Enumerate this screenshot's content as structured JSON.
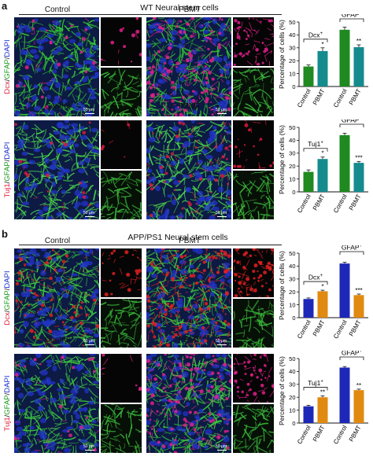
{
  "figure": {
    "panel_a_letter": "a",
    "panel_b_letter": "b",
    "panel_a_title": "WT Neural stem cells",
    "panel_b_title": "APP/PS1 Neural stem cells"
  },
  "rows": [
    {
      "control_label": "Control",
      "treated_label": "PBMT",
      "stain_marker": "Dcx",
      "stain_rest": [
        "GFAP",
        "DAPI"
      ],
      "scale_bar_left": "50 μm",
      "scale_bar_right": "50 μm",
      "bg_main": "#0c1a44",
      "fiber": "#35c535",
      "nuc": "#2233c8",
      "red_dot": "#e0208a",
      "red_density": 0.2,
      "red_density_treated": 1.0
    },
    {
      "control_label": "Control",
      "treated_label": "PBMT",
      "stain_marker": "Tuj1",
      "stain_rest": [
        "GFAP",
        "DAPI"
      ],
      "scale_bar_left": "50 μm",
      "scale_bar_right": "50 μm",
      "bg_main": "#0c1a44",
      "fiber": "#4ad24a",
      "nuc": "#2233c8",
      "red_dot": "#d81b3c",
      "red_density": 0.1,
      "red_density_treated": 0.35
    },
    {
      "control_label": "Control",
      "treated_label": "PBMT",
      "stain_marker": "Dcx",
      "stain_rest": [
        "GFAP",
        "DAPI"
      ],
      "scale_bar_left": "50 μm",
      "scale_bar_right": "50 μm",
      "bg_main": "#0c1a44",
      "fiber": "#3ec83e",
      "nuc": "#2233c8",
      "red_dot": "#e02020",
      "red_density": 0.5,
      "red_density_treated": 1.2
    },
    {
      "control_label": "Control",
      "treated_label": "PBMT",
      "stain_marker": "Tuj1",
      "stain_rest": [
        "GFAP",
        "DAPI"
      ],
      "scale_bar_left": "50 μm",
      "scale_bar_right": "50 μm",
      "bg_main": "#0c1a44",
      "fiber": "#3ec83e",
      "nuc": "#2233c8",
      "red_dot": "#e0208a",
      "red_density": 0.15,
      "red_density_treated": 0.9
    }
  ],
  "chart_data": [
    {
      "type": "bar",
      "ylabel": "Percentage of cells (%)",
      "ylim": [
        0,
        50
      ],
      "yticks": [
        0,
        10,
        20,
        30,
        40,
        50
      ],
      "categories": [
        "Control",
        "PBMT",
        "Control",
        "PBMT"
      ],
      "values": [
        15.5,
        27.5,
        44,
        30.5
      ],
      "errors": [
        1.2,
        2.5,
        2.0,
        1.8
      ],
      "colors": [
        "#1f8a1f",
        "#168b8e",
        "#1f8a1f",
        "#168b8e"
      ],
      "significance": [
        "",
        "*",
        "",
        "**"
      ],
      "groups": [
        {
          "label": "Dcx",
          "superscript": "+"
        },
        {
          "label": "GFAP",
          "superscript": "+"
        }
      ]
    },
    {
      "type": "bar",
      "ylabel": "Percentage of cells (%)",
      "ylim": [
        0,
        50
      ],
      "yticks": [
        0,
        10,
        20,
        30,
        40,
        50
      ],
      "categories": [
        "Control",
        "PBMT",
        "Control",
        "PBMT"
      ],
      "values": [
        15.5,
        25.5,
        44,
        22.5
      ],
      "errors": [
        1.5,
        1.5,
        1.5,
        1.0
      ],
      "colors": [
        "#1f8a1f",
        "#168b8e",
        "#1f8a1f",
        "#168b8e"
      ],
      "significance": [
        "",
        "*",
        "",
        "***"
      ],
      "groups": [
        {
          "label": "Tuj1",
          "superscript": "+"
        },
        {
          "label": "GFAP",
          "superscript": "+"
        }
      ]
    },
    {
      "type": "bar",
      "ylabel": "Percentage of cells (%)",
      "ylim": [
        0,
        50
      ],
      "yticks": [
        0,
        10,
        20,
        30,
        40,
        50
      ],
      "categories": [
        "Control",
        "PBMT",
        "Control",
        "PBMT"
      ],
      "values": [
        14.5,
        20.5,
        42,
        17.5
      ],
      "errors": [
        0.8,
        0.8,
        1.0,
        0.8
      ],
      "colors": [
        "#1e28b8",
        "#e08a10",
        "#1e28b8",
        "#e08a10"
      ],
      "significance": [
        "",
        "*",
        "",
        "***"
      ],
      "groups": [
        {
          "label": "Dcx",
          "superscript": "+"
        },
        {
          "label": "GFAP",
          "superscript": "+"
        }
      ]
    },
    {
      "type": "bar",
      "ylabel": "Percentage of cells (%)",
      "ylim": [
        0,
        50
      ],
      "yticks": [
        0,
        10,
        20,
        30,
        40,
        50
      ],
      "categories": [
        "Control",
        "PBMT",
        "Control",
        "PBMT"
      ],
      "values": [
        13,
        20,
        43,
        25.5
      ],
      "errors": [
        0.8,
        1.0,
        0.8,
        0.8
      ],
      "colors": [
        "#1e28b8",
        "#e08a10",
        "#1e28b8",
        "#e08a10"
      ],
      "significance": [
        "",
        "**",
        "",
        "**"
      ],
      "groups": [
        {
          "label": "Tuj1",
          "superscript": "+"
        },
        {
          "label": "GFAP",
          "superscript": "+"
        }
      ]
    }
  ]
}
